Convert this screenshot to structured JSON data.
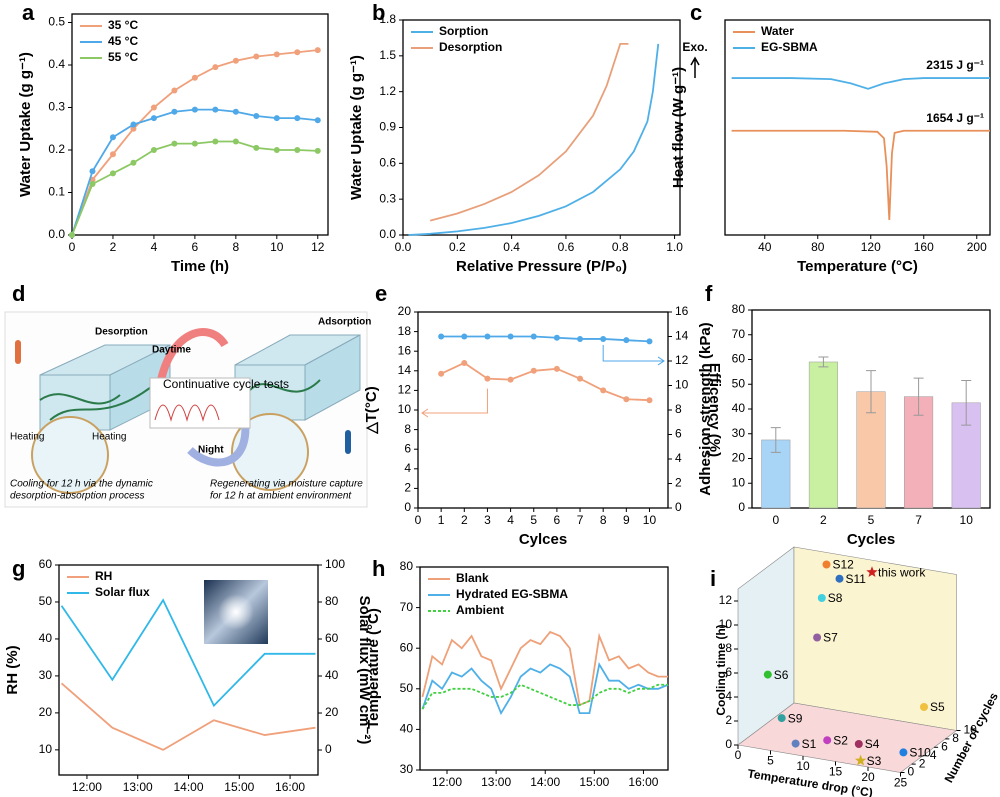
{
  "chart_data": [
    {
      "panel": "a",
      "type": "line",
      "xlabel": "Time (h)",
      "ylabel": "Water Uptake (g g⁻¹)",
      "legend": "upper left",
      "markers": true,
      "x": [
        0,
        1,
        2,
        3,
        4,
        5,
        6,
        7,
        8,
        9,
        10,
        11,
        12
      ],
      "xlim": [
        0,
        12.5
      ],
      "xticks": [
        0,
        2,
        4,
        6,
        8,
        10,
        12
      ],
      "ylim": [
        0,
        0.52
      ],
      "yticks": [
        {
          "value": 0,
          "label": "0.0"
        },
        0.1,
        0.2,
        0.3,
        0.4,
        0.5
      ],
      "series": [
        {
          "name": "35 °C",
          "color": "#f0a07a",
          "values": [
            0,
            0.13,
            0.19,
            0.25,
            0.3,
            0.34,
            0.37,
            0.395,
            0.41,
            0.42,
            0.425,
            0.43,
            0.435
          ]
        },
        {
          "name": "45 °C",
          "color": "#4fa8e8",
          "values": [
            0,
            0.15,
            0.23,
            0.26,
            0.275,
            0.29,
            0.295,
            0.295,
            0.29,
            0.28,
            0.275,
            0.275,
            0.27
          ]
        },
        {
          "name": "55 °C",
          "color": "#8cc864",
          "values": [
            0,
            0.12,
            0.145,
            0.17,
            0.2,
            0.215,
            0.215,
            0.22,
            0.22,
            0.205,
            0.2,
            0.2,
            0.198
          ]
        }
      ]
    },
    {
      "panel": "b",
      "type": "line",
      "xlabel": "Relative Pressure (P/P₀)",
      "ylabel": "Water Uptake (g g⁻¹)",
      "legend": "upper left",
      "xlim": [
        0,
        1.02
      ],
      "xticks": [
        {
          "value": 0,
          "label": "0.0"
        },
        0.2,
        0.4,
        0.6,
        0.8,
        {
          "value": 1,
          "label": "1.0"
        }
      ],
      "ylim": [
        0,
        1.8
      ],
      "yticks": [
        {
          "value": 0,
          "label": "0.0"
        },
        0.3,
        0.6,
        0.9,
        1.2,
        1.5,
        1.8
      ],
      "series": [
        {
          "name": "Sorption",
          "color": "#4fb0e8",
          "x": [
            0.02,
            0.1,
            0.2,
            0.3,
            0.4,
            0.5,
            0.6,
            0.7,
            0.8,
            0.85,
            0.9,
            0.92,
            0.93,
            0.94
          ],
          "values": [
            0,
            0.01,
            0.03,
            0.06,
            0.1,
            0.16,
            0.24,
            0.36,
            0.55,
            0.7,
            0.95,
            1.2,
            1.4,
            1.6
          ]
        },
        {
          "name": "Desorption",
          "color": "#e8a07a",
          "x": [
            0.1,
            0.2,
            0.3,
            0.4,
            0.5,
            0.6,
            0.7,
            0.75,
            0.8,
            0.83
          ],
          "values": [
            0.12,
            0.18,
            0.26,
            0.36,
            0.5,
            0.7,
            1.0,
            1.25,
            1.6,
            1.6
          ]
        }
      ]
    },
    {
      "panel": "c",
      "type": "line",
      "xlabel": "Temperature (°C)",
      "ylabel": "Heat flow (W g⁻¹)",
      "legend": "upper left",
      "exo_label": "Exo.",
      "annotations": [
        "2315 J g⁻¹",
        "1654 J g⁻¹"
      ],
      "xlim": [
        10,
        210
      ],
      "xticks": [
        40,
        80,
        120,
        160,
        200
      ],
      "ylim": [
        0,
        10
      ],
      "series": [
        {
          "name": "Water",
          "color": "#e8905a",
          "x": [
            15,
            100,
            125,
            130,
            132,
            134,
            136,
            138,
            145,
            210
          ],
          "values": [
            4.85,
            4.85,
            4.8,
            4.5,
            3.2,
            0.7,
            3.8,
            4.75,
            4.85,
            4.85
          ]
        },
        {
          "name": "EG-SBMA",
          "color": "#4fb0e8",
          "x": [
            15,
            60,
            90,
            105,
            118,
            130,
            145,
            160,
            210
          ],
          "values": [
            7.3,
            7.3,
            7.25,
            7.05,
            6.8,
            7.05,
            7.25,
            7.3,
            7.3
          ]
        }
      ]
    },
    {
      "panel": "e",
      "type": "line",
      "xlabel": "Cylces",
      "ylabel": "△T(°C)",
      "y2label": "Efficency (%)",
      "markers": true,
      "x": [
        1,
        2,
        3,
        4,
        5,
        6,
        7,
        8,
        9,
        10
      ],
      "xlim": [
        0,
        10.8
      ],
      "xticks": [
        0,
        1,
        2,
        3,
        4,
        5,
        6,
        7,
        8,
        9,
        10
      ],
      "ylim": [
        0,
        20
      ],
      "yticks": [
        0,
        2,
        4,
        6,
        8,
        10,
        12,
        14,
        16,
        18,
        20
      ],
      "y2lim": [
        0,
        16
      ],
      "y2ticks": [
        0,
        2,
        4,
        6,
        8,
        10,
        12,
        14,
        16
      ],
      "series": [
        {
          "name": "△T",
          "color": "#f0a07a",
          "values": [
            13.7,
            14.8,
            13.2,
            13.1,
            14,
            14.2,
            13.2,
            12,
            11.1,
            11
          ]
        },
        {
          "name": "Efficency",
          "color": "#4fa8e8",
          "axis": "y2",
          "values": [
            14,
            14,
            14,
            14,
            14,
            13.9,
            13.8,
            13.8,
            13.7,
            13.6
          ]
        }
      ]
    },
    {
      "panel": "f",
      "type": "bar",
      "xlabel": "Cycles",
      "ylabel": "Adhesion strength (kPa)",
      "categories": [
        "0",
        "2",
        "5",
        "7",
        "10"
      ],
      "values": [
        27.5,
        59,
        47,
        45,
        42.5
      ],
      "errors": [
        5,
        2,
        8.5,
        7.5,
        9
      ],
      "colors": [
        "#a8d4f5",
        "#c8f0a0",
        "#f8c8a8",
        "#f4b0b8",
        "#d8c0f0"
      ],
      "ylim": [
        0,
        80
      ],
      "yticks": [
        0,
        10,
        20,
        30,
        40,
        50,
        60,
        70,
        80
      ]
    },
    {
      "panel": "g",
      "type": "line",
      "ylabel": "RH (%)",
      "y2label": "Solar flux (mW cm⁻²)",
      "legend": "upper left",
      "x": [
        11.5,
        12.5,
        13.5,
        14.5,
        15.5,
        16.5
      ],
      "xlim": [
        11.45,
        16.55
      ],
      "xticks": [
        {
          "value": 12,
          "label": "12:00"
        },
        {
          "value": 13,
          "label": "13:00"
        },
        {
          "value": 14,
          "label": "14:00"
        },
        {
          "value": 15,
          "label": "15:00"
        },
        {
          "value": 16,
          "label": "16:00"
        }
      ],
      "ylim": [
        3.2,
        60
      ],
      "yticks": [
        10,
        20,
        30,
        40,
        50,
        60
      ],
      "y2lim": [
        -13.5,
        100
      ],
      "y2ticks": [
        0,
        20,
        40,
        60,
        80,
        100
      ],
      "series": [
        {
          "name": "RH",
          "color": "#f0a07a",
          "values": [
            28,
            16,
            10,
            18,
            14,
            16
          ]
        },
        {
          "name": "Solar flux",
          "color": "#30b8e8",
          "axis": "y2",
          "values": [
            78,
            38,
            81,
            24,
            52,
            52
          ]
        }
      ]
    },
    {
      "panel": "h",
      "type": "line",
      "ylabel": "Temperature (°C)",
      "legend": "upper left",
      "x": [
        11.5,
        11.7,
        11.9,
        12.1,
        12.3,
        12.5,
        12.7,
        12.9,
        13.1,
        13.3,
        13.5,
        13.7,
        13.9,
        14.1,
        14.3,
        14.5,
        14.7,
        14.9,
        15.1,
        15.3,
        15.5,
        15.7,
        15.9,
        16.1,
        16.3,
        16.5
      ],
      "xlim": [
        11.45,
        16.5
      ],
      "xticks": [
        {
          "value": 12,
          "label": "12:00"
        },
        {
          "value": 13,
          "label": "13:00"
        },
        {
          "value": 14,
          "label": "14:00"
        },
        {
          "value": 15,
          "label": "15:00"
        },
        {
          "value": 16,
          "label": "16:00"
        }
      ],
      "ylim": [
        30,
        80
      ],
      "yticks": [
        30,
        40,
        50,
        60,
        70,
        80
      ],
      "series": [
        {
          "name": "Blank",
          "color": "#eea078",
          "values": [
            48,
            58,
            56,
            62,
            60,
            63,
            58,
            57,
            50,
            55,
            60,
            62,
            61,
            64,
            63,
            60,
            46,
            47,
            63,
            57,
            58,
            55,
            56,
            54,
            53,
            53
          ]
        },
        {
          "name": "Hydrated EG-SBMA",
          "color": "#4fb0e8",
          "values": [
            45,
            52,
            50,
            54,
            53,
            55,
            52,
            50,
            44,
            48,
            53,
            55,
            54,
            56,
            55,
            53,
            44,
            44,
            56,
            52,
            52,
            50,
            51,
            50,
            50,
            51
          ]
        },
        {
          "name": "Ambient",
          "color": "#40d040",
          "dash": true,
          "values": [
            45,
            49,
            49,
            50,
            50,
            50,
            49,
            48,
            48,
            49,
            51,
            50,
            49,
            48,
            47,
            46,
            46,
            47,
            49,
            50,
            50,
            49,
            50,
            50,
            51,
            51
          ]
        }
      ]
    },
    {
      "panel": "i",
      "type": "scatter3d",
      "xlabel": "Temperature drop (°C)",
      "ylabel": "Cooling time (h)",
      "zlabel": "Number of cycles",
      "xticks": [
        0,
        5,
        10,
        15,
        20,
        25
      ],
      "yticks": [
        0,
        2,
        4,
        6,
        8,
        10,
        12
      ],
      "zticks": [
        0,
        2,
        4,
        6,
        8,
        10
      ],
      "points": [
        {
          "name": "this work",
          "color": "#d02020",
          "marker": "star",
          "x": 12,
          "y": 12,
          "z": 10
        },
        {
          "name": "S12",
          "color": "#f08030",
          "x": 5,
          "y": 12,
          "z": 10
        },
        {
          "name": "S11",
          "color": "#3070c0",
          "x": 7,
          "y": 11,
          "z": 10
        },
        {
          "name": "S8",
          "color": "#40d0e0",
          "x": 6,
          "y": 10,
          "z": 8
        },
        {
          "name": "S7",
          "color": "#9060a0",
          "x": 7,
          "y": 7.5,
          "z": 6
        },
        {
          "name": "S6",
          "color": "#30c030",
          "x": 2,
          "y": 5,
          "z": 3
        },
        {
          "name": "S9",
          "color": "#30a0a0",
          "x": 5,
          "y": 2,
          "z": 2
        },
        {
          "name": "S1",
          "color": "#6080c0",
          "x": 8,
          "y": 0.5,
          "z": 1
        },
        {
          "name": "S2",
          "color": "#c040c0",
          "x": 12,
          "y": 0.8,
          "z": 2
        },
        {
          "name": "S4",
          "color": "#a03060",
          "x": 16,
          "y": 0.5,
          "z": 3
        },
        {
          "name": "S3",
          "color": "#d0b020",
          "marker": "star",
          "x": 18,
          "y": 0,
          "z": 1
        },
        {
          "name": "S5",
          "color": "#f0c040",
          "x": 20,
          "y": 1.5,
          "z": 10
        },
        {
          "name": "S10",
          "color": "#2080e0",
          "x": 22,
          "y": 0,
          "z": 4
        }
      ]
    }
  ],
  "schematic": {
    "panel": "d",
    "desorption": "Desorption",
    "daytime": "Daytime",
    "adsorption": "Adsorption",
    "night": "Night",
    "heating": [
      "Heating",
      "Heating"
    ],
    "cycle_tests": "Continuative cycle tests",
    "caption_left": [
      "Cooling for 12 h via the dynamic",
      "desorption-absorption process"
    ],
    "caption_right": [
      "Regenerating via moisture capture",
      "for 12 h at ambient environment"
    ]
  }
}
